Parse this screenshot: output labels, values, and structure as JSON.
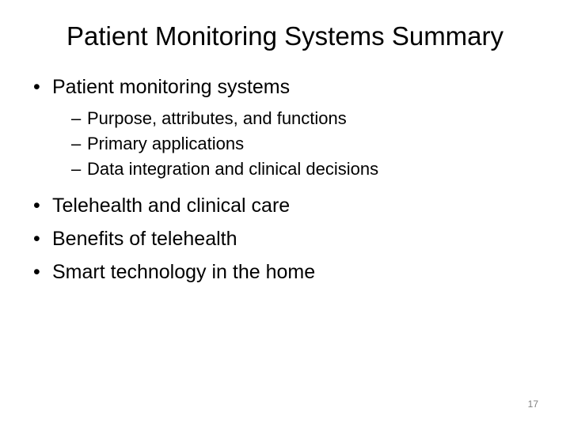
{
  "slide": {
    "title": "Patient Monitoring Systems Summary",
    "page_number": "17",
    "bullets": {
      "b1": "Patient monitoring systems",
      "b1_sub1": "Purpose, attributes, and functions",
      "b1_sub2": "Primary applications",
      "b1_sub3": "Data integration and clinical decisions",
      "b2": "Telehealth and clinical care",
      "b3": "Benefits of telehealth",
      "b4": "Smart technology in the home"
    },
    "markers": {
      "l1": "•",
      "l2": "–"
    },
    "style": {
      "background_color": "#ffffff",
      "text_color": "#000000",
      "page_number_color": "#808080",
      "title_fontsize": 33,
      "l1_fontsize": 25,
      "l2_fontsize": 22,
      "page_number_fontsize": 12
    }
  }
}
